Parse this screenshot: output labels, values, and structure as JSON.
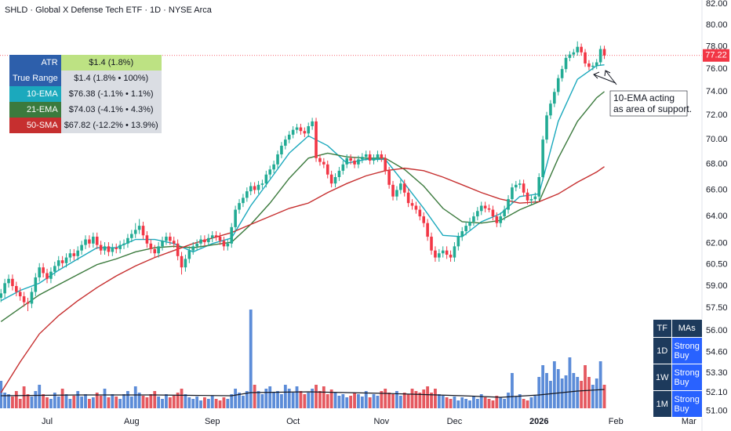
{
  "header": {
    "title": "SHLD · Global X Defense Tech ETF · 1D · NYSE Arca"
  },
  "chart_data": {
    "type": "candlestick",
    "log_scale": true,
    "xlim": [
      -0.25,
      182.4
    ],
    "xticks": [
      {
        "value": 12,
        "label": "Jul"
      },
      {
        "value": 34,
        "label": "Aug"
      },
      {
        "value": 55,
        "label": "Sep"
      },
      {
        "value": 76,
        "label": "Oct"
      },
      {
        "value": 99,
        "label": "Nov"
      },
      {
        "value": 118,
        "label": "Dec"
      },
      {
        "value": 140,
        "label": "2026",
        "bold": true
      },
      {
        "value": 160,
        "label": "Feb"
      },
      {
        "value": 179,
        "label": "Mar"
      }
    ],
    "ylim": [
      50.74,
      82.38
    ],
    "yticks": [
      {
        "value": 82,
        "label": "82.00"
      },
      {
        "value": 80,
        "label": "80.00"
      },
      {
        "value": 78,
        "label": "78.00"
      },
      {
        "value": 76,
        "label": "76.00"
      },
      {
        "value": 74,
        "label": "74.00"
      },
      {
        "value": 72,
        "label": "72.00"
      },
      {
        "value": 70,
        "label": "70.00"
      },
      {
        "value": 68,
        "label": "68.00"
      },
      {
        "value": 66,
        "label": "66.00"
      },
      {
        "value": 64,
        "label": "64.00"
      },
      {
        "value": 62,
        "label": "62.00"
      },
      {
        "value": 60.5,
        "label": "60.50"
      },
      {
        "value": 59,
        "label": "59.00"
      },
      {
        "value": 57.5,
        "label": "57.50"
      },
      {
        "value": 56,
        "label": "56.00"
      },
      {
        "value": 54.6,
        "label": "54.60"
      },
      {
        "value": 53.3,
        "label": "53.30"
      },
      {
        "value": 52.1,
        "label": "52.10"
      },
      {
        "value": 51,
        "label": "51.00"
      }
    ],
    "up_color": "#22ab94",
    "down_color": "#f23645",
    "open": [
      58.2,
      58.5,
      59.2,
      59.5,
      59.0,
      58.6,
      58.3,
      57.9,
      57.8,
      58.6,
      59.6,
      60.3,
      59.9,
      59.5,
      60.0,
      60.4,
      60.8,
      60.6,
      61.0,
      61.3,
      61.1,
      61.5,
      61.9,
      62.3,
      62.0,
      62.5,
      61.9,
      61.5,
      61.8,
      61.4,
      61.7,
      61.6,
      61.9,
      62.0,
      62.4,
      62.7,
      63.0,
      63.3,
      62.6,
      62.0,
      61.6,
      61.3,
      61.8,
      62.2,
      62.5,
      62.2,
      62.0,
      61.1,
      60.3,
      60.9,
      61.5,
      61.8,
      62.0,
      62.3,
      62.1,
      62.4,
      62.6,
      62.5,
      62.2,
      61.8,
      62.0,
      63.2,
      64.5,
      65.0,
      65.4,
      65.9,
      66.3,
      66.0,
      66.4,
      66.5,
      67.2,
      67.6,
      68.0,
      68.8,
      69.5,
      70.0,
      70.4,
      70.8,
      71.0,
      70.7,
      70.5,
      71.1,
      71.5,
      68.5,
      68.2,
      68.0,
      67.2,
      66.5,
      67.0,
      67.5,
      68.0,
      68.5,
      68.3,
      68.0,
      68.4,
      68.6,
      68.8,
      68.3,
      68.5,
      68.8,
      68.5,
      67.5,
      66.4,
      65.5,
      66.0,
      66.5,
      65.8,
      65.0,
      64.8,
      64.5,
      64.0,
      63.5,
      62.5,
      61.5,
      61.0,
      61.3,
      61.5,
      61.2,
      61.0,
      61.8,
      62.5,
      62.9,
      63.3,
      63.6,
      64.0,
      64.4,
      64.8,
      64.6,
      64.5,
      64.0,
      63.5,
      64.0,
      64.5,
      65.3,
      66.2,
      66.4,
      66.5,
      65.8,
      65.2,
      65.3,
      65.5,
      67.0,
      70.0,
      72.0,
      73.0,
      74.0,
      75.2,
      76.0,
      77.0,
      77.3,
      77.5,
      78.0,
      77.5,
      76.5,
      76.2,
      76.3,
      76.6,
      77.8
    ],
    "high": [
      58.8,
      59.5,
      59.8,
      59.8,
      59.3,
      58.9,
      58.6,
      58.2,
      58.9,
      59.9,
      60.6,
      60.6,
      60.2,
      60.3,
      60.7,
      61.1,
      61.1,
      61.3,
      61.6,
      61.6,
      61.8,
      62.2,
      62.6,
      62.6,
      62.8,
      62.8,
      62.2,
      62.1,
      62.1,
      62.0,
      62.0,
      62.2,
      62.3,
      62.7,
      63.0,
      63.5,
      63.8,
      63.6,
      62.9,
      62.3,
      61.9,
      62.1,
      62.5,
      62.8,
      62.8,
      62.5,
      62.3,
      61.4,
      61.2,
      61.8,
      62.1,
      62.3,
      62.6,
      62.6,
      62.7,
      62.9,
      62.9,
      62.8,
      62.5,
      62.3,
      63.5,
      64.8,
      65.3,
      65.7,
      66.2,
      66.6,
      66.6,
      66.7,
      66.8,
      67.5,
      67.9,
      68.3,
      69.1,
      69.8,
      70.3,
      70.7,
      71.1,
      71.3,
      71.3,
      71.0,
      71.4,
      71.8,
      71.8,
      68.8,
      68.5,
      68.3,
      67.5,
      67.3,
      67.8,
      68.3,
      68.8,
      68.8,
      68.6,
      68.7,
      68.9,
      69.1,
      69.1,
      68.8,
      69.1,
      69.1,
      68.8,
      67.8,
      66.7,
      66.3,
      66.8,
      66.8,
      66.1,
      65.3,
      65.1,
      64.8,
      64.3,
      63.8,
      62.8,
      61.8,
      61.6,
      61.8,
      61.8,
      61.5,
      62.1,
      62.8,
      63.2,
      63.6,
      63.9,
      64.3,
      64.7,
      65.1,
      65.1,
      64.9,
      64.8,
      64.3,
      64.3,
      64.8,
      65.6,
      66.5,
      66.7,
      66.8,
      66.8,
      66.1,
      65.6,
      65.8,
      67.3,
      70.3,
      72.3,
      73.3,
      74.3,
      75.5,
      76.3,
      77.3,
      77.6,
      77.8,
      78.5,
      78.3,
      77.8,
      76.8,
      76.6,
      76.9,
      78.1,
      78.1
    ],
    "low": [
      57.9,
      58.2,
      58.9,
      58.7,
      58.3,
      58.0,
      57.6,
      57.3,
      57.5,
      58.3,
      59.3,
      59.6,
      59.2,
      59.2,
      59.7,
      60.1,
      60.3,
      60.3,
      60.7,
      60.8,
      60.8,
      61.2,
      61.6,
      61.7,
      61.7,
      61.6,
      61.2,
      61.2,
      61.1,
      61.1,
      61.3,
      61.3,
      61.6,
      61.7,
      62.1,
      62.4,
      62.7,
      62.3,
      61.7,
      61.3,
      61.0,
      61.0,
      61.5,
      61.9,
      61.9,
      61.7,
      60.8,
      59.8,
      60.0,
      60.6,
      61.2,
      61.5,
      61.7,
      61.8,
      61.8,
      62.1,
      62.2,
      61.9,
      61.5,
      61.5,
      61.7,
      62.9,
      64.2,
      64.7,
      65.1,
      65.6,
      65.7,
      65.7,
      66.1,
      66.2,
      66.9,
      67.3,
      67.7,
      68.5,
      69.2,
      69.7,
      70.1,
      70.5,
      70.4,
      70.2,
      70.2,
      70.8,
      68.2,
      67.9,
      67.7,
      66.9,
      66.2,
      66.2,
      66.7,
      67.2,
      67.7,
      68.0,
      67.7,
      67.7,
      68.1,
      68.3,
      68.0,
      68.0,
      68.2,
      68.2,
      67.2,
      66.1,
      65.2,
      65.2,
      65.7,
      65.5,
      64.7,
      64.5,
      64.2,
      63.7,
      63.2,
      62.2,
      61.2,
      60.7,
      60.7,
      61.0,
      60.9,
      60.7,
      60.7,
      61.5,
      62.2,
      62.6,
      63.0,
      63.3,
      63.7,
      64.1,
      64.3,
      64.3,
      63.7,
      63.2,
      63.2,
      63.7,
      64.2,
      65.0,
      65.9,
      66.1,
      65.5,
      64.9,
      64.9,
      65.0,
      65.2,
      66.7,
      69.7,
      71.7,
      72.7,
      73.7,
      74.9,
      75.7,
      76.7,
      77.0,
      77.2,
      77.2,
      76.2,
      75.9,
      75.9,
      76.0,
      76.3,
      76.9
    ],
    "close": [
      58.5,
      59.2,
      59.5,
      59.0,
      58.6,
      58.3,
      57.9,
      57.8,
      58.6,
      59.6,
      60.3,
      59.9,
      59.5,
      60.0,
      60.4,
      60.8,
      60.6,
      61.0,
      61.3,
      61.1,
      61.5,
      61.9,
      62.3,
      62.0,
      62.5,
      61.9,
      61.5,
      61.8,
      61.4,
      61.7,
      61.6,
      61.9,
      62.0,
      62.4,
      62.7,
      63.0,
      63.3,
      62.6,
      62.0,
      61.6,
      61.3,
      61.8,
      62.2,
      62.5,
      62.2,
      62.0,
      61.1,
      60.3,
      60.9,
      61.5,
      61.8,
      62.0,
      62.3,
      62.1,
      62.4,
      62.6,
      62.5,
      62.2,
      61.8,
      62.0,
      63.2,
      64.5,
      65.0,
      65.4,
      65.9,
      66.3,
      66.0,
      66.4,
      66.5,
      67.2,
      67.6,
      68.0,
      68.8,
      69.5,
      70.0,
      70.4,
      70.8,
      71.0,
      70.7,
      70.5,
      71.1,
      71.5,
      68.5,
      68.2,
      68.0,
      67.2,
      66.5,
      67.0,
      67.5,
      68.0,
      68.5,
      68.3,
      68.0,
      68.4,
      68.6,
      68.8,
      68.3,
      68.5,
      68.8,
      68.5,
      67.5,
      66.4,
      65.5,
      66.0,
      66.5,
      65.8,
      65.0,
      64.8,
      64.5,
      64.0,
      63.5,
      62.5,
      61.5,
      61.0,
      61.3,
      61.5,
      61.2,
      61.0,
      61.8,
      62.5,
      62.9,
      63.3,
      63.6,
      64.0,
      64.4,
      64.8,
      64.6,
      64.5,
      64.0,
      63.5,
      64.0,
      64.5,
      65.3,
      66.2,
      66.4,
      66.5,
      65.8,
      65.2,
      65.3,
      65.5,
      67.0,
      70.0,
      72.0,
      73.0,
      74.0,
      75.2,
      76.0,
      77.0,
      77.3,
      77.5,
      78.0,
      77.5,
      76.5,
      76.2,
      76.3,
      76.6,
      77.8,
      77.22
    ],
    "volume": {
      "ylim": [
        0,
        140
      ],
      "up_color": "#4a7fd4",
      "down_color": "#e2474f",
      "values": [
        35,
        20,
        18,
        15,
        22,
        12,
        28,
        18,
        15,
        22,
        30,
        18,
        14,
        12,
        20,
        15,
        25,
        18,
        12,
        16,
        22,
        15,
        18,
        12,
        14,
        20,
        16,
        25,
        14,
        18,
        15,
        12,
        18,
        22,
        15,
        28,
        20,
        16,
        14,
        18,
        22,
        15,
        12,
        18,
        14,
        16,
        20,
        25,
        18,
        14,
        12,
        15,
        10,
        14,
        12,
        16,
        12,
        10,
        14,
        12,
        18,
        25,
        20,
        16,
        22,
        126,
        30,
        22,
        18,
        25,
        28,
        20,
        22,
        18,
        30,
        25,
        20,
        28,
        22,
        18,
        20,
        25,
        30,
        22,
        28,
        18,
        24,
        20,
        16,
        18,
        14,
        16,
        20,
        18,
        15,
        22,
        14,
        18,
        16,
        22,
        25,
        20,
        18,
        22,
        16,
        20,
        18,
        25,
        22,
        20,
        24,
        28,
        20,
        25,
        18,
        16,
        14,
        12,
        15,
        10,
        14,
        12,
        10,
        15,
        12,
        18,
        14,
        12,
        10,
        16,
        14,
        12,
        20,
        45,
        15,
        18,
        12,
        10,
        14,
        16,
        40,
        55,
        45,
        35,
        60,
        50,
        38,
        42,
        65,
        45,
        40,
        35,
        55,
        40,
        30,
        38,
        60,
        30
      ]
    },
    "volume_ma": {
      "color": "#131722",
      "x": [
        0,
        20,
        40,
        60,
        65,
        80,
        100,
        120,
        130,
        140,
        150,
        157
      ],
      "values": [
        16,
        17,
        17,
        16,
        20,
        21,
        19,
        16,
        14,
        17,
        22,
        24
      ]
    },
    "series": [
      {
        "name": "10-EMA",
        "color": "#1ba9bd",
        "table_value": "$76.38 (-1.1% • 1.1%)",
        "x": [
          0,
          5,
          10,
          15,
          20,
          25,
          30,
          35,
          40,
          45,
          50,
          55,
          60,
          65,
          70,
          75,
          80,
          85,
          90,
          95,
          100,
          105,
          110,
          115,
          120,
          125,
          130,
          135,
          140,
          145,
          150,
          155,
          157
        ],
        "values": [
          58.0,
          58.7,
          59.2,
          60.1,
          60.9,
          61.7,
          61.7,
          62.3,
          62.3,
          62.0,
          61.4,
          62.0,
          62.4,
          64.8,
          66.8,
          68.9,
          70.3,
          69.5,
          68.1,
          68.4,
          68.4,
          66.5,
          64.6,
          62.6,
          62.5,
          63.6,
          64.2,
          65.5,
          65.7,
          71.5,
          75.1,
          76.3,
          76.38
        ]
      },
      {
        "name": "21-EMA",
        "color": "#3b7a3d",
        "table_value": "$74.03 (-4.1% • 4.3%)",
        "x": [
          0,
          5,
          10,
          15,
          20,
          25,
          30,
          35,
          40,
          45,
          50,
          55,
          60,
          65,
          70,
          75,
          80,
          85,
          90,
          95,
          100,
          105,
          110,
          115,
          120,
          125,
          130,
          135,
          140,
          145,
          150,
          155,
          157
        ],
        "values": [
          56.6,
          57.5,
          58.4,
          59.1,
          59.8,
          60.5,
          60.9,
          61.4,
          61.7,
          61.8,
          61.7,
          61.9,
          62.1,
          63.4,
          65.0,
          66.9,
          68.5,
          68.9,
          68.6,
          68.5,
          68.5,
          67.6,
          66.3,
          64.6,
          63.6,
          63.5,
          63.7,
          64.5,
          65.1,
          68.5,
          71.5,
          73.5,
          74.03
        ]
      },
      {
        "name": "50-SMA",
        "color": "#c62f2f",
        "table_value": "$67.82 (-12.2% • 13.9%)",
        "x": [
          0,
          5,
          10,
          15,
          20,
          25,
          30,
          35,
          40,
          45,
          50,
          55,
          60,
          65,
          70,
          75,
          80,
          85,
          90,
          95,
          100,
          105,
          110,
          115,
          120,
          125,
          130,
          135,
          140,
          145,
          150,
          155,
          157
        ],
        "values": [
          52.1,
          54.0,
          55.8,
          57.0,
          58.0,
          58.9,
          59.7,
          60.4,
          61.0,
          61.5,
          62.0,
          62.4,
          62.8,
          63.4,
          64.0,
          64.6,
          65.0,
          65.8,
          66.5,
          67.1,
          67.5,
          67.7,
          67.5,
          67.0,
          66.4,
          65.8,
          65.3,
          65.0,
          65.1,
          65.7,
          66.6,
          67.4,
          67.82
        ]
      }
    ],
    "last_price": 77.22,
    "last_price_color": "#f23645",
    "annotation": [
      "10-EMA acting",
      "as area of support."
    ]
  },
  "indicator_table": {
    "label_color": "#2d5fab",
    "value_bg": "#dadde3",
    "rows": [
      {
        "label": "ATR",
        "value": "$1.4 (1.8%)",
        "value_bg": "#bde283"
      },
      {
        "label": "True Range",
        "value": "$1.4 (1.8% • 100%)"
      }
    ]
  },
  "ratings_table": {
    "header_color": "#1d3a5c",
    "rating_color": "#2962ff",
    "header": [
      "TF",
      "MAs"
    ],
    "rows": [
      {
        "tf": "1D",
        "rating": "Strong Buy"
      },
      {
        "tf": "1W",
        "rating": "Strong Buy"
      },
      {
        "tf": "1M",
        "rating": "Strong Buy"
      }
    ]
  }
}
